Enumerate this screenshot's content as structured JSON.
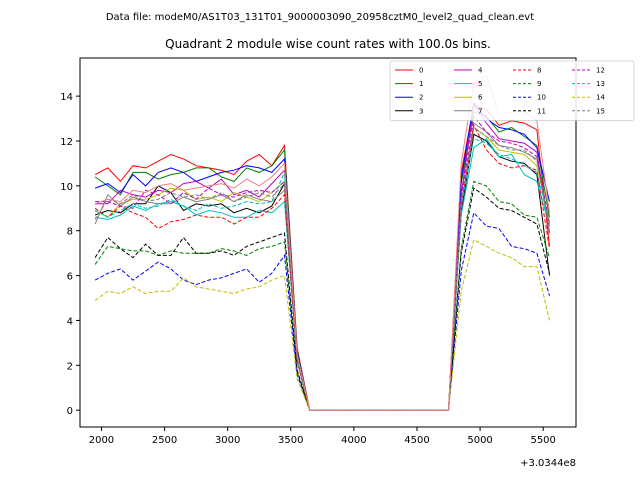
{
  "header_text": "Data file: modeM0/AS1T03_131T01_9000003090_20958cztM0_level2_quad_clean.evt",
  "chart_data": {
    "type": "line",
    "title": "Quadrant 2 module wise count rates with 100.0s bins.",
    "xlabel": "",
    "ylabel": "",
    "x_offset_label": "+3.0344e8",
    "xlim": [
      1830,
      5760
    ],
    "ylim": [
      -0.75,
      15.7
    ],
    "x_ticks": [
      2000,
      2500,
      3000,
      3500,
      4000,
      4500,
      5000,
      5500
    ],
    "y_ticks": [
      0,
      2,
      4,
      6,
      8,
      10,
      12,
      14
    ],
    "grid": false,
    "legend_placement": "top-right",
    "x": [
      1950,
      2050,
      2150,
      2250,
      2350,
      2450,
      2550,
      2650,
      2750,
      2850,
      2950,
      3050,
      3150,
      3250,
      3350,
      3450,
      3550,
      3650,
      3750,
      3850,
      3950,
      4050,
      4150,
      4250,
      4350,
      4450,
      4550,
      4650,
      4750,
      4850,
      4950,
      5050,
      5150,
      5250,
      5350,
      5450,
      5550
    ],
    "series": [
      {
        "name": "0",
        "color": "#ff0000",
        "dash": "solid",
        "values": [
          10.5,
          10.8,
          10.2,
          10.9,
          10.8,
          11.1,
          11.4,
          11.2,
          10.9,
          10.8,
          10.7,
          10.5,
          11.1,
          11.4,
          10.9,
          11.8,
          2.8,
          0,
          0,
          0,
          0,
          0,
          0,
          0,
          0,
          0,
          0,
          0,
          0,
          10.6,
          13.6,
          13.4,
          12.7,
          12.9,
          12.8,
          12.5,
          7.3
        ]
      },
      {
        "name": "1",
        "color": "#008000",
        "dash": "solid",
        "values": [
          10.4,
          10.0,
          9.6,
          10.6,
          10.6,
          10.3,
          10.5,
          10.6,
          10.8,
          10.8,
          10.4,
          10.2,
          10.8,
          10.6,
          10.9,
          11.6,
          2.7,
          0,
          0,
          0,
          0,
          0,
          0,
          0,
          0,
          0,
          0,
          0,
          0,
          10.1,
          13.3,
          13.1,
          12.4,
          12.6,
          12.2,
          11.8,
          8.6
        ]
      },
      {
        "name": "2",
        "color": "#0000ff",
        "dash": "solid",
        "values": [
          9.9,
          10.1,
          9.7,
          10.5,
          10.0,
          10.6,
          10.8,
          10.6,
          10.2,
          10.4,
          10.6,
          10.7,
          10.9,
          10.8,
          10.6,
          11.2,
          2.6,
          0,
          0,
          0,
          0,
          0,
          0,
          0,
          0,
          0,
          0,
          0,
          0,
          10.3,
          13.7,
          13.0,
          12.6,
          12.5,
          12.3,
          11.7,
          9.3
        ]
      },
      {
        "name": "3",
        "color": "#000000",
        "dash": "solid",
        "values": [
          8.7,
          8.9,
          8.8,
          9.2,
          9.2,
          10.0,
          9.7,
          8.9,
          9.2,
          9.1,
          9.2,
          8.8,
          9.0,
          8.8,
          9.1,
          10.1,
          2.3,
          0,
          0,
          0,
          0,
          0,
          0,
          0,
          0,
          0,
          0,
          0,
          0,
          8.8,
          12.3,
          12.0,
          11.3,
          11.1,
          11.0,
          10.5,
          6.0
        ]
      },
      {
        "name": "4",
        "color": "#bf00bf",
        "dash": "solid",
        "values": [
          9.2,
          9.2,
          9.8,
          9.6,
          9.5,
          9.8,
          9.7,
          10.1,
          10.2,
          9.9,
          10.3,
          9.6,
          9.8,
          9.5,
          10.1,
          10.7,
          2.5,
          0,
          0,
          0,
          0,
          0,
          0,
          0,
          0,
          0,
          0,
          0,
          0,
          9.6,
          13.6,
          12.8,
          12.1,
          12.0,
          11.9,
          11.5,
          7.9
        ]
      },
      {
        "name": "5",
        "color": "#00bfbf",
        "dash": "solid",
        "values": [
          8.6,
          8.5,
          8.7,
          9.1,
          8.9,
          9.2,
          9.3,
          9.1,
          8.7,
          8.9,
          8.8,
          8.6,
          8.6,
          8.9,
          8.8,
          9.3,
          2.2,
          0,
          0,
          0,
          0,
          0,
          0,
          0,
          0,
          0,
          0,
          0,
          0,
          8.7,
          11.7,
          12.1,
          11.3,
          11.4,
          10.5,
          10.2,
          8.2
        ]
      },
      {
        "name": "6",
        "color": "#bfbf00",
        "dash": "solid",
        "values": [
          8.9,
          8.6,
          9.2,
          9.4,
          9.4,
          9.6,
          9.9,
          9.8,
          9.4,
          9.5,
          9.3,
          9.7,
          9.5,
          9.3,
          9.7,
          10.2,
          2.4,
          0,
          0,
          0,
          0,
          0,
          0,
          0,
          0,
          0,
          0,
          0,
          0,
          9.1,
          12.6,
          12.2,
          11.6,
          11.5,
          11.4,
          10.9,
          8.4
        ]
      },
      {
        "name": "7",
        "color": "#808080",
        "dash": "solid",
        "values": [
          8.3,
          9.6,
          9.1,
          9.5,
          9.3,
          9.2,
          9.2,
          9.5,
          9.3,
          9.4,
          9.6,
          9.3,
          9.6,
          9.4,
          9.3,
          9.8,
          2.3,
          0,
          0,
          0,
          0,
          0,
          0,
          0,
          0,
          0,
          0,
          0,
          0,
          9.0,
          12.8,
          12.4,
          11.8,
          11.7,
          11.5,
          11.2,
          8.0
        ]
      },
      {
        "name": "8",
        "color": "#ff0000",
        "dash": "dashed",
        "values": [
          9.0,
          8.6,
          9.1,
          8.8,
          8.6,
          8.1,
          8.4,
          8.5,
          8.7,
          8.6,
          8.6,
          8.3,
          8.6,
          8.6,
          9.0,
          9.6,
          2.2,
          0,
          0,
          0,
          0,
          0,
          0,
          0,
          0,
          0,
          0,
          0,
          0,
          9.0,
          12.7,
          11.6,
          11.0,
          10.8,
          10.9,
          10.7,
          7.2
        ]
      },
      {
        "name": "9",
        "color": "#008000",
        "dash": "dashed",
        "values": [
          6.5,
          7.3,
          7.2,
          7.1,
          7.1,
          6.9,
          7.1,
          7.0,
          7.0,
          7.0,
          7.2,
          7.1,
          6.9,
          7.2,
          7.3,
          7.5,
          1.7,
          0,
          0,
          0,
          0,
          0,
          0,
          0,
          0,
          0,
          0,
          0,
          0,
          7.2,
          10.2,
          10.0,
          9.3,
          9.2,
          8.7,
          8.6,
          6.8
        ]
      },
      {
        "name": "10",
        "color": "#0000ff",
        "dash": "dashed",
        "values": [
          5.8,
          6.1,
          6.3,
          5.8,
          6.2,
          6.6,
          6.3,
          5.8,
          5.6,
          5.8,
          5.9,
          6.1,
          6.3,
          5.7,
          6.1,
          6.9,
          1.6,
          0,
          0,
          0,
          0,
          0,
          0,
          0,
          0,
          0,
          0,
          0,
          0,
          6.2,
          8.8,
          8.2,
          8.1,
          7.3,
          7.2,
          7.0,
          5.1
        ]
      },
      {
        "name": "11",
        "color": "#000000",
        "dash": "dashed",
        "values": [
          6.8,
          7.7,
          7.2,
          6.8,
          7.4,
          6.9,
          6.9,
          7.7,
          7.0,
          7.0,
          7.1,
          6.9,
          7.3,
          7.5,
          7.7,
          7.9,
          1.8,
          0,
          0,
          0,
          0,
          0,
          0,
          0,
          0,
          0,
          0,
          0,
          0,
          7.0,
          9.9,
          9.5,
          9.0,
          8.9,
          8.6,
          8.3,
          6.1
        ]
      },
      {
        "name": "12",
        "color": "#bf00bf",
        "dash": "dashed",
        "values": [
          9.3,
          9.3,
          9.1,
          9.0,
          9.8,
          9.6,
          9.2,
          9.7,
          9.4,
          9.9,
          9.6,
          9.5,
          9.7,
          9.8,
          9.7,
          10.2,
          2.4,
          0,
          0,
          0,
          0,
          0,
          0,
          0,
          0,
          0,
          0,
          0,
          0,
          9.4,
          13.1,
          12.4,
          12.0,
          11.9,
          11.7,
          11.3,
          8.3
        ]
      },
      {
        "name": "13",
        "color": "#00bfbf",
        "dash": "dashed",
        "values": [
          8.9,
          8.6,
          8.9,
          9.2,
          9.0,
          9.1,
          9.4,
          9.1,
          8.9,
          9.2,
          9.0,
          9.1,
          9.3,
          9.2,
          9.3,
          10.6,
          2.3,
          0,
          0,
          0,
          0,
          0,
          0,
          0,
          0,
          0,
          0,
          0,
          0,
          9.1,
          12.1,
          11.9,
          11.4,
          11.2,
          10.9,
          10.6,
          8.3
        ]
      },
      {
        "name": "14",
        "color": "#bfbf00",
        "dash": "dashed",
        "values": [
          4.9,
          5.3,
          5.2,
          5.5,
          5.2,
          5.3,
          5.3,
          5.9,
          5.5,
          5.4,
          5.3,
          5.2,
          5.4,
          5.5,
          5.8,
          6.0,
          1.4,
          0,
          0,
          0,
          0,
          0,
          0,
          0,
          0,
          0,
          0,
          0,
          0,
          5.3,
          7.6,
          7.3,
          7.0,
          6.8,
          6.4,
          6.4,
          4.0
        ]
      },
      {
        "name": "15",
        "color": "#808080",
        "dash": "dashed",
        "values": [
          8.5,
          9.4,
          9.2,
          9.6,
          9.3,
          9.4,
          9.7,
          9.5,
          9.6,
          9.4,
          9.7,
          9.3,
          9.5,
          9.7,
          9.5,
          10.1,
          2.4,
          0,
          0,
          0,
          0,
          0,
          0,
          0,
          0,
          0,
          0,
          0,
          0,
          9.3,
          12.6,
          12.2,
          11.8,
          11.6,
          11.6,
          11.1,
          8.2
        ]
      },
      {
        "name": "",
        "color": "#f08080",
        "dash": "solid",
        "values": [
          9.2,
          9.4,
          9.3,
          9.8,
          9.7,
          10.0,
          10.1,
          9.8,
          9.9,
          10.0,
          10.1,
          9.9,
          10.3,
          10.0,
          10.4,
          11.0,
          2.5,
          0,
          0,
          0,
          0,
          0,
          0,
          0,
          0,
          0,
          0,
          0,
          0,
          11.0,
          14.6,
          14.9,
          13.2,
          13.3,
          13.3,
          12.9,
          8.8
        ]
      }
    ]
  }
}
